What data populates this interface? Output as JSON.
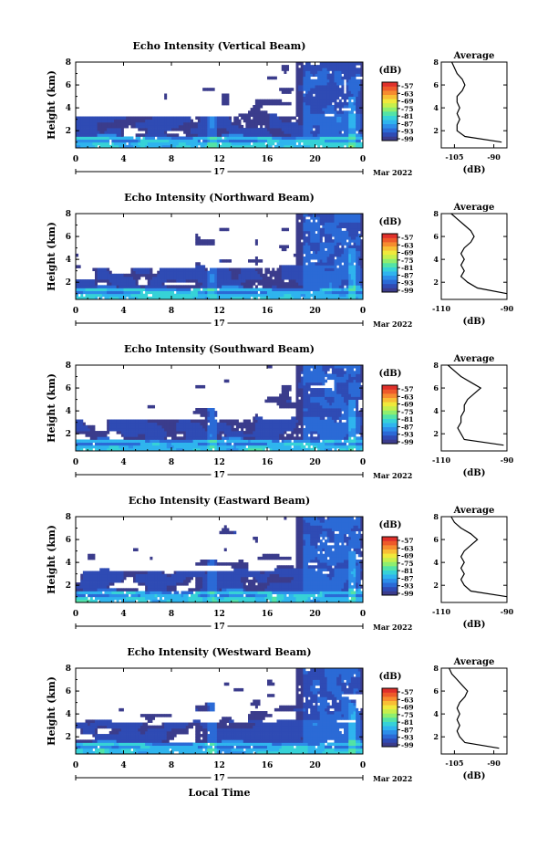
{
  "figure": {
    "xlabel": "Local Time",
    "date_label": "17",
    "month_label": "Mar 2022",
    "unit_label": "(dB)",
    "average_title": "Average",
    "average_xlabel": "(dB)",
    "ylabel": "Height (km)"
  },
  "colorbar": {
    "ticks": [
      "-57",
      "-63",
      "-69",
      "-75",
      "-81",
      "-87",
      "-93",
      "-99"
    ],
    "colors": [
      "#3b3c8c",
      "#2f4bb4",
      "#2b6ad6",
      "#2d8ee9",
      "#2fb4ee",
      "#36d2d7",
      "#53e3a6",
      "#8eee6f",
      "#c6ef4d",
      "#f0e93c",
      "#f8be35",
      "#f68c2f",
      "#ee5a2a",
      "#e0302a"
    ]
  },
  "chart_data": [
    {
      "type": "heatmap",
      "title": "Echo Intensity (Vertical Beam)",
      "ylabel": "Height (km)",
      "xlabel": "",
      "xlim": [
        0,
        24
      ],
      "xticks": [
        "0",
        "4",
        "8",
        "12",
        "16",
        "20",
        "0"
      ],
      "ylim": [
        0.5,
        8
      ],
      "yticks": [
        "2",
        "4",
        "6",
        "8"
      ],
      "value_range": [
        -99,
        -57
      ],
      "profile": {
        "xlim": [
          -110,
          -85
        ],
        "xticks": [
          "-105",
          "-90"
        ],
        "yticks": [
          "2",
          "4",
          "6",
          "8"
        ],
        "height_km": [
          1.0,
          1.5,
          2.0,
          2.5,
          3.0,
          3.5,
          4.0,
          4.5,
          5.0,
          5.5,
          6.0,
          6.5,
          7.0,
          7.5,
          8.0
        ],
        "value_db": [
          -87,
          -101,
          -104,
          -104,
          -103,
          -104,
          -103,
          -104,
          -104,
          -102,
          -101,
          -102,
          -104,
          -105,
          -106
        ]
      }
    },
    {
      "type": "heatmap",
      "title": "Echo Intensity (Northward Beam)",
      "ylabel": "Height (km)",
      "xlabel": "",
      "xlim": [
        0,
        24
      ],
      "xticks": [
        "0",
        "4",
        "8",
        "12",
        "16",
        "20",
        "0"
      ],
      "ylim": [
        0.5,
        8
      ],
      "yticks": [
        "2",
        "4",
        "6",
        "8"
      ],
      "value_range": [
        -99,
        -57
      ],
      "profile": {
        "xlim": [
          -110,
          -90
        ],
        "xticks": [
          "-110",
          "-90"
        ],
        "yticks": [
          "2",
          "4",
          "6",
          "8"
        ],
        "height_km": [
          1.0,
          1.5,
          2.0,
          2.5,
          3.0,
          3.5,
          4.0,
          4.5,
          5.0,
          5.5,
          6.0,
          6.5,
          7.0,
          7.5,
          8.0
        ],
        "value_db": [
          -90,
          -99,
          -102,
          -104,
          -103,
          -104,
          -103,
          -104,
          -103,
          -101,
          -100,
          -101,
          -103,
          -105,
          -107
        ]
      }
    },
    {
      "type": "heatmap",
      "title": "Echo Intensity (Southward Beam)",
      "ylabel": "Height (km)",
      "xlabel": "",
      "xlim": [
        0,
        24
      ],
      "xticks": [
        "0",
        "4",
        "8",
        "12",
        "16",
        "20",
        "0"
      ],
      "ylim": [
        0.5,
        8
      ],
      "yticks": [
        "2",
        "4",
        "6",
        "8"
      ],
      "value_range": [
        -99,
        -57
      ],
      "profile": {
        "xlim": [
          -110,
          -90
        ],
        "xticks": [
          "-110",
          "-90"
        ],
        "yticks": [
          "2",
          "4",
          "6",
          "8"
        ],
        "height_km": [
          1.0,
          1.5,
          2.0,
          2.5,
          3.0,
          3.5,
          4.0,
          4.5,
          5.0,
          5.5,
          6.0,
          6.5,
          7.0,
          7.5,
          8.0
        ],
        "value_db": [
          -91,
          -103,
          -104,
          -105,
          -104,
          -104,
          -103,
          -103,
          -102,
          -100,
          -98,
          -101,
          -104,
          -106,
          -108
        ]
      }
    },
    {
      "type": "heatmap",
      "title": "Echo Intensity (Eastward Beam)",
      "ylabel": "Height (km)",
      "xlabel": "",
      "xlim": [
        0,
        24
      ],
      "xticks": [
        "0",
        "4",
        "8",
        "12",
        "16",
        "20",
        "0"
      ],
      "ylim": [
        0.5,
        8
      ],
      "yticks": [
        "2",
        "4",
        "6",
        "8"
      ],
      "value_range": [
        -99,
        -57
      ],
      "profile": {
        "xlim": [
          -110,
          -90
        ],
        "xticks": [
          "-110",
          "-90"
        ],
        "yticks": [
          "2",
          "4",
          "6",
          "8"
        ],
        "height_km": [
          1.0,
          1.5,
          2.0,
          2.5,
          3.0,
          3.5,
          4.0,
          4.5,
          5.0,
          5.5,
          6.0,
          6.5,
          7.0,
          7.5,
          8.0
        ],
        "value_db": [
          -90,
          -101,
          -103,
          -104,
          -103,
          -104,
          -103,
          -104,
          -103,
          -101,
          -99,
          -101,
          -104,
          -106,
          -107
        ]
      }
    },
    {
      "type": "heatmap",
      "title": "Echo Intensity (Westward Beam)",
      "ylabel": "Height (km)",
      "xlabel": "Local Time",
      "xlim": [
        0,
        24
      ],
      "xticks": [
        "0",
        "4",
        "8",
        "12",
        "16",
        "20",
        "0"
      ],
      "ylim": [
        0.5,
        8
      ],
      "yticks": [
        "2",
        "4",
        "6",
        "8"
      ],
      "value_range": [
        -99,
        -57
      ],
      "profile": {
        "xlim": [
          -110,
          -85
        ],
        "xticks": [
          "-105",
          "-90"
        ],
        "yticks": [
          "2",
          "4",
          "6",
          "8"
        ],
        "height_km": [
          1.0,
          1.5,
          2.0,
          2.5,
          3.0,
          3.5,
          4.0,
          4.5,
          5.0,
          5.5,
          6.0,
          6.5,
          7.0,
          7.5,
          8.0
        ],
        "value_db": [
          -88,
          -101,
          -103,
          -104,
          -103,
          -104,
          -103,
          -104,
          -103,
          -101,
          -100,
          -102,
          -104,
          -106,
          -107
        ]
      }
    }
  ]
}
